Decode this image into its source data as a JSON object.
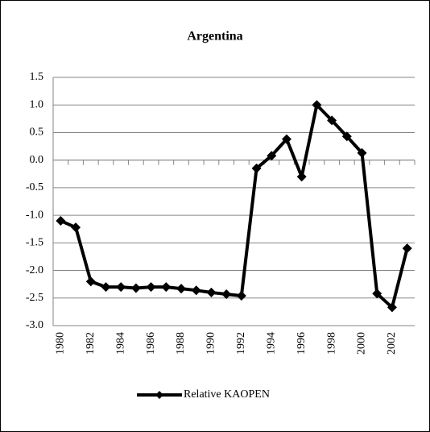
{
  "chart_data": {
    "type": "line",
    "title": "Argentina",
    "categories": [
      "1980",
      null,
      "1982",
      null,
      "1984",
      null,
      "1986",
      null,
      "1988",
      null,
      "1990",
      null,
      "1992",
      null,
      "1994",
      null,
      "1996",
      null,
      "1998",
      null,
      "2000",
      null,
      "2002",
      null
    ],
    "series": [
      {
        "name": "Relative KAOPEN",
        "color": "#000000",
        "values": [
          -1.1,
          -1.22,
          -2.2,
          -2.3,
          -2.3,
          -2.32,
          -2.3,
          -2.3,
          -2.33,
          -2.36,
          -2.4,
          -2.43,
          -2.46,
          -0.15,
          0.08,
          0.38,
          -0.3,
          1.0,
          0.72,
          0.43,
          0.13,
          -2.42,
          -2.67,
          -1.6
        ]
      }
    ],
    "ylim": [
      -3,
      1.5
    ],
    "yticks": [
      {
        "value": -3,
        "label": "-3.0"
      },
      -2.5,
      {
        "value": -2,
        "label": "-2.0"
      },
      -1.5,
      {
        "value": -1,
        "label": "-1.0"
      },
      -0.5,
      {
        "value": 0,
        "label": "0.0"
      },
      0.5,
      {
        "value": 1,
        "label": "1.0"
      },
      1.5
    ],
    "grid": true,
    "legend": "bottom"
  }
}
